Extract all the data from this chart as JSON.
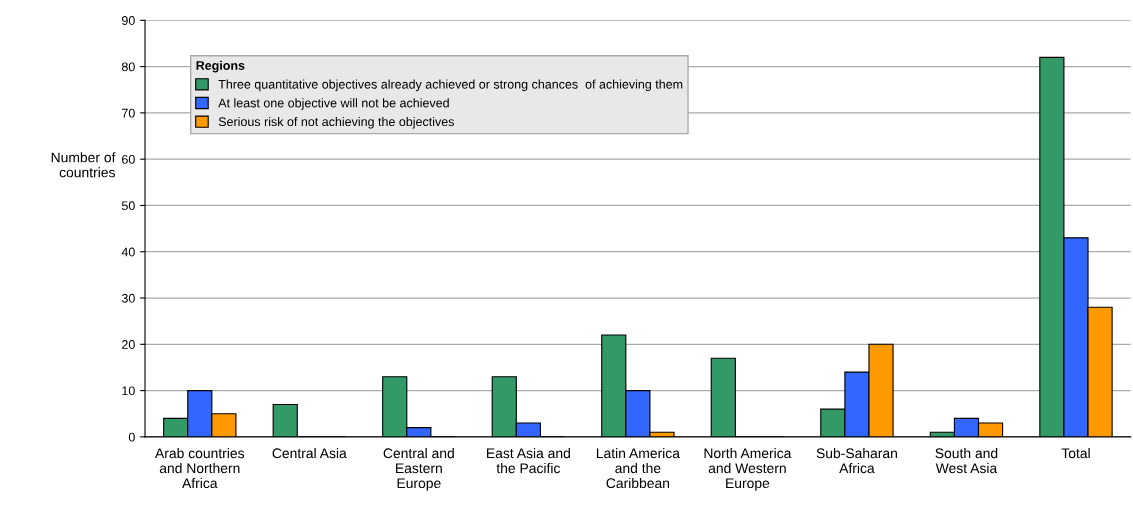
{
  "chart_data": {
    "type": "bar",
    "ylabel": "Number of\ncountries",
    "legend_title": "Regions",
    "categories": [
      "Arab countries\nand Northern\nAfrica",
      "Central Asia",
      "Central and\nEastern\nEurope",
      "East Asia and\nthe Pacific",
      "Latin America\nand the\nCaribbean",
      "North America\nand Western\nEurope",
      "Sub-Saharan\nAfrica",
      "South and\nWest Asia",
      "Total"
    ],
    "series": [
      {
        "name": "Three quantitative objectives already achieved or strong chances  of achieving them",
        "color": "#339966",
        "values": [
          4,
          7,
          13,
          13,
          22,
          17,
          6,
          1,
          82
        ]
      },
      {
        "name": "At least one objective will not be achieved",
        "color": "#3366ff",
        "values": [
          10,
          0,
          2,
          3,
          10,
          0,
          14,
          4,
          43
        ]
      },
      {
        "name": "Serious risk of not achieving the objectives",
        "color": "#ff9900",
        "values": [
          5,
          0,
          0,
          0,
          1,
          0,
          20,
          3,
          28
        ]
      }
    ],
    "ylim": [
      0,
      90
    ],
    "yticks": [
      0,
      10,
      20,
      30,
      40,
      50,
      60,
      70,
      80,
      90
    ],
    "grid": "y",
    "legend": "top left"
  }
}
